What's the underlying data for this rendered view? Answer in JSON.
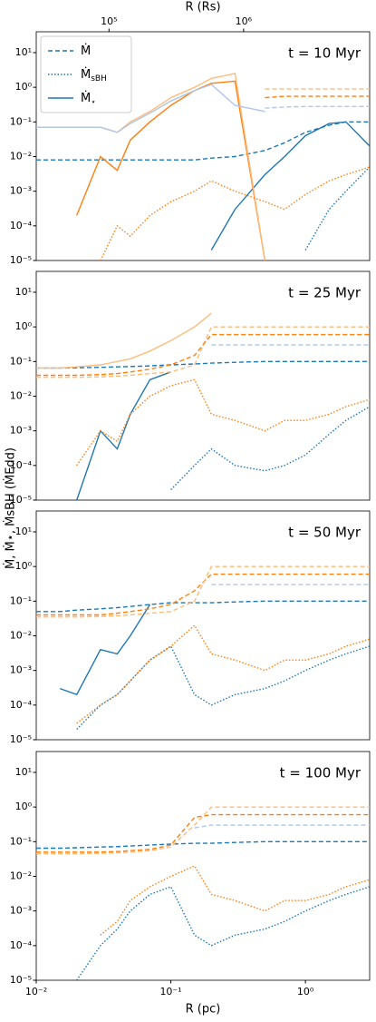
{
  "ylabel": "Ṁ, Ṁ⋆, ṀsBH (ṀEdd)",
  "chart_data": [
    {
      "type": "line",
      "annotation": "t = 10 Myr",
      "x2label": "R (Rs)",
      "x2lim": [
        28800,
        8640000
      ],
      "x2ticks": [
        {
          "value": 100000,
          "label": "10⁵"
        },
        {
          "value": 1000000,
          "label": "10⁶"
        }
      ],
      "legend_loc": "upper left",
      "legend": [
        {
          "label": "Ṁ",
          "linestyle": "dashed",
          "color": "#1f77b4"
        },
        {
          "label": "Ṁ",
          "sub": "sBH",
          "linestyle": "dotted",
          "color": "#1f77b4"
        },
        {
          "label": "Ṁ",
          "sub": "⋆",
          "linestyle": "solid",
          "color": "#1f77b4"
        }
      ],
      "log_x": true,
      "log_y": true,
      "xlim": [
        0.01,
        3
      ],
      "ylim": [
        1e-05,
        40
      ],
      "yticks": [
        {
          "value": 1e-05,
          "label": "10⁻⁵"
        },
        {
          "value": 0.0001,
          "label": "10⁻⁴"
        },
        {
          "value": 0.001,
          "label": "10⁻³"
        },
        {
          "value": 0.01,
          "label": "10⁻²"
        },
        {
          "value": 0.1,
          "label": "10⁻¹"
        },
        {
          "value": 1,
          "label": "10⁰"
        },
        {
          "value": 10,
          "label": "10¹"
        }
      ],
      "x": [
        0.01,
        0.015,
        0.02,
        0.03,
        0.04,
        0.05,
        0.07,
        0.1,
        0.15,
        0.2,
        0.3,
        0.5,
        0.7,
        1,
        1.5,
        2,
        3
      ],
      "series": [
        {
          "color": "#1f77b4",
          "linestyle": "dashed",
          "values": [
            0.008,
            0.008,
            0.008,
            0.008,
            0.008,
            0.008,
            0.008,
            0.008,
            0.008,
            0.009,
            0.01,
            0.015,
            0.025,
            0.05,
            0.08,
            0.1,
            0.1
          ]
        },
        {
          "color": "#1f77b4",
          "linestyle": "solid",
          "values": [
            null,
            null,
            null,
            null,
            null,
            null,
            null,
            null,
            null,
            2e-05,
            0.0003,
            0.003,
            0.01,
            0.04,
            0.09,
            0.1,
            0.02
          ]
        },
        {
          "color": "#1f77b4",
          "linestyle": "dotted",
          "values": [
            null,
            null,
            null,
            null,
            null,
            null,
            null,
            null,
            null,
            null,
            null,
            null,
            null,
            2e-05,
            0.0003,
            0.001,
            0.005
          ]
        },
        {
          "color": "#ff7f0e",
          "linestyle": "solid",
          "values": [
            null,
            null,
            0.0002,
            0.01,
            0.004,
            0.03,
            0.1,
            0.3,
            0.8,
            1.3,
            1.5,
            1e-05,
            null,
            null,
            null,
            null,
            null
          ]
        },
        {
          "color": "#ffbb78",
          "linestyle": "solid",
          "values": [
            0.07,
            0.07,
            0.07,
            0.07,
            0.05,
            0.1,
            0.2,
            0.5,
            1,
            1.8,
            2.5,
            1e-05,
            null,
            null,
            null,
            null,
            null
          ]
        },
        {
          "color": "#aec7e8",
          "linestyle": "solid",
          "values": [
            0.07,
            0.07,
            0.07,
            0.07,
            0.05,
            0.09,
            0.18,
            0.4,
            0.8,
            1.2,
            0.3,
            0.2,
            null,
            null,
            null,
            null,
            null
          ]
        },
        {
          "color": "#ff7f0e",
          "linestyle": "dashed",
          "values": [
            null,
            null,
            null,
            null,
            null,
            null,
            null,
            null,
            null,
            null,
            null,
            0.5,
            0.55,
            0.55,
            0.55,
            0.55,
            0.55
          ]
        },
        {
          "color": "#ffbb78",
          "linestyle": "dashed",
          "values": [
            null,
            null,
            null,
            null,
            null,
            null,
            null,
            null,
            null,
            null,
            null,
            0.9,
            0.9,
            0.9,
            0.9,
            0.9,
            0.9
          ]
        },
        {
          "color": "#aec7e8",
          "linestyle": "dashed",
          "values": [
            null,
            null,
            null,
            null,
            null,
            null,
            null,
            null,
            null,
            null,
            null,
            0.25,
            0.27,
            0.28,
            0.28,
            0.28,
            0.28
          ]
        },
        {
          "color": "#ff7f0e",
          "linestyle": "dotted",
          "values": [
            null,
            null,
            null,
            1e-05,
            0.0001,
            5e-05,
            0.0002,
            0.0005,
            0.001,
            0.002,
            0.001,
            0.0005,
            0.0003,
            0.0008,
            0.002,
            0.003,
            0.005
          ]
        }
      ]
    },
    {
      "type": "line",
      "annotation": "t = 25 Myr",
      "log_x": true,
      "log_y": true,
      "xlim": [
        0.01,
        3
      ],
      "ylim": [
        1e-05,
        40
      ],
      "yticks": [
        {
          "value": 1e-05,
          "label": "10⁻⁵"
        },
        {
          "value": 0.0001,
          "label": "10⁻⁴"
        },
        {
          "value": 0.001,
          "label": "10⁻³"
        },
        {
          "value": 0.01,
          "label": "10⁻²"
        },
        {
          "value": 0.1,
          "label": "10⁻¹"
        },
        {
          "value": 1,
          "label": "10⁰"
        },
        {
          "value": 10,
          "label": "10¹"
        }
      ],
      "x": [
        0.01,
        0.015,
        0.02,
        0.03,
        0.04,
        0.05,
        0.07,
        0.1,
        0.15,
        0.2,
        0.3,
        0.5,
        0.7,
        1,
        1.5,
        2,
        3
      ],
      "series": [
        {
          "color": "#1f77b4",
          "linestyle": "dashed",
          "values": [
            0.065,
            0.065,
            0.066,
            0.068,
            0.07,
            0.072,
            0.075,
            0.08,
            0.085,
            0.09,
            0.095,
            0.1,
            0.1,
            0.1,
            0.1,
            0.1,
            0.1
          ]
        },
        {
          "color": "#1f77b4",
          "linestyle": "solid",
          "values": [
            null,
            null,
            1e-05,
            0.001,
            0.0003,
            0.003,
            0.03,
            0.05,
            null,
            null,
            null,
            null,
            null,
            null,
            null,
            null,
            null
          ]
        },
        {
          "color": "#1f77b4",
          "linestyle": "dotted",
          "values": [
            null,
            null,
            null,
            null,
            null,
            null,
            null,
            2e-05,
            0.0001,
            0.0003,
            0.0001,
            7e-05,
            0.0001,
            0.0002,
            0.0008,
            0.002,
            0.005
          ]
        },
        {
          "color": "#ffbb78",
          "linestyle": "solid",
          "values": [
            0.065,
            0.065,
            0.07,
            0.08,
            0.1,
            0.12,
            0.2,
            0.4,
            1,
            2.5,
            null,
            null,
            null,
            null,
            null,
            null,
            null
          ]
        },
        {
          "color": "#ffbb78",
          "linestyle": "dashed",
          "values": [
            0.035,
            0.035,
            0.035,
            0.036,
            0.038,
            0.04,
            0.045,
            0.05,
            0.08,
            1,
            1,
            1,
            1,
            1,
            1,
            1,
            1
          ]
        },
        {
          "color": "#ff7f0e",
          "linestyle": "dashed",
          "values": [
            0.04,
            0.04,
            0.04,
            0.042,
            0.045,
            0.05,
            0.06,
            0.08,
            0.15,
            0.6,
            0.6,
            0.6,
            0.6,
            0.6,
            0.6,
            0.6,
            0.6
          ]
        },
        {
          "color": "#aec7e8",
          "linestyle": "dashed",
          "values": [
            null,
            null,
            null,
            null,
            null,
            null,
            null,
            null,
            null,
            0.3,
            0.3,
            0.3,
            0.3,
            0.3,
            0.3,
            0.3,
            0.3
          ]
        },
        {
          "color": "#ff7f0e",
          "linestyle": "dotted",
          "values": [
            null,
            null,
            0.0001,
            0.001,
            0.0005,
            0.003,
            0.01,
            0.02,
            0.03,
            0.003,
            0.002,
            0.001,
            0.002,
            0.002,
            0.003,
            0.005,
            0.008
          ]
        }
      ]
    },
    {
      "type": "line",
      "annotation": "t = 50 Myr",
      "log_x": true,
      "log_y": true,
      "xlim": [
        0.01,
        3
      ],
      "ylim": [
        1e-05,
        40
      ],
      "yticks": [
        {
          "value": 1e-05,
          "label": "10⁻⁵"
        },
        {
          "value": 0.0001,
          "label": "10⁻⁴"
        },
        {
          "value": 0.001,
          "label": "10⁻³"
        },
        {
          "value": 0.01,
          "label": "10⁻²"
        },
        {
          "value": 0.1,
          "label": "10⁻¹"
        },
        {
          "value": 1,
          "label": "10⁰"
        },
        {
          "value": 10,
          "label": "10¹"
        }
      ],
      "x": [
        0.01,
        0.015,
        0.02,
        0.03,
        0.04,
        0.05,
        0.07,
        0.1,
        0.15,
        0.2,
        0.3,
        0.5,
        0.7,
        1,
        1.5,
        2,
        3
      ],
      "series": [
        {
          "color": "#1f77b4",
          "linestyle": "dashed",
          "values": [
            0.05,
            0.05,
            0.055,
            0.06,
            0.065,
            0.07,
            0.08,
            0.09,
            0.09,
            0.09,
            0.095,
            0.1,
            0.1,
            0.1,
            0.1,
            0.1,
            0.1
          ]
        },
        {
          "color": "#1f77b4",
          "linestyle": "solid",
          "values": [
            null,
            0.0003,
            0.0002,
            0.004,
            0.003,
            0.01,
            0.08,
            null,
            null,
            null,
            null,
            null,
            null,
            null,
            null,
            null,
            null
          ]
        },
        {
          "color": "#1f77b4",
          "linestyle": "dotted",
          "values": [
            null,
            null,
            2e-05,
            0.0001,
            0.0002,
            0.0005,
            0.002,
            0.005,
            0.0002,
            0.0001,
            0.0002,
            0.0003,
            0.0005,
            0.001,
            0.002,
            0.003,
            0.005
          ]
        },
        {
          "color": "#ff7f0e",
          "linestyle": "dashed",
          "values": [
            0.04,
            0.04,
            0.04,
            0.04,
            0.045,
            0.05,
            0.06,
            0.08,
            0.2,
            0.6,
            0.6,
            0.6,
            0.6,
            0.6,
            0.6,
            0.6,
            0.6
          ]
        },
        {
          "color": "#ffbb78",
          "linestyle": "dashed",
          "values": [
            0.035,
            0.035,
            0.035,
            0.036,
            0.038,
            0.04,
            0.045,
            0.05,
            0.1,
            1,
            1,
            1,
            1,
            1,
            1,
            1,
            1
          ]
        },
        {
          "color": "#aec7e8",
          "linestyle": "dashed",
          "values": [
            null,
            null,
            null,
            null,
            null,
            null,
            null,
            null,
            null,
            0.3,
            0.3,
            0.3,
            0.3,
            0.3,
            0.3,
            0.3,
            0.3
          ]
        },
        {
          "color": "#ff7f0e",
          "linestyle": "dotted",
          "values": [
            null,
            null,
            3e-05,
            0.0001,
            0.0002,
            0.0005,
            0.002,
            0.005,
            0.02,
            0.003,
            0.002,
            0.001,
            0.002,
            0.002,
            0.003,
            0.005,
            0.008
          ]
        }
      ]
    },
    {
      "type": "line",
      "annotation": "t = 100 Myr",
      "xlabel": "R (pc)",
      "xticks": [
        {
          "value": 0.01,
          "label": "10⁻²"
        },
        {
          "value": 0.1,
          "label": "10⁻¹"
        },
        {
          "value": 1,
          "label": "10⁰"
        }
      ],
      "log_x": true,
      "log_y": true,
      "xlim": [
        0.01,
        3
      ],
      "ylim": [
        1e-05,
        40
      ],
      "yticks": [
        {
          "value": 1e-05,
          "label": "10⁻⁵"
        },
        {
          "value": 0.0001,
          "label": "10⁻⁴"
        },
        {
          "value": 0.001,
          "label": "10⁻³"
        },
        {
          "value": 0.01,
          "label": "10⁻²"
        },
        {
          "value": 0.1,
          "label": "10⁻¹"
        },
        {
          "value": 1,
          "label": "10⁰"
        },
        {
          "value": 10,
          "label": "10¹"
        }
      ],
      "x": [
        0.01,
        0.015,
        0.02,
        0.03,
        0.04,
        0.05,
        0.07,
        0.1,
        0.15,
        0.2,
        0.3,
        0.5,
        0.7,
        1,
        1.5,
        2,
        3
      ],
      "series": [
        {
          "color": "#1f77b4",
          "linestyle": "dashed",
          "values": [
            0.065,
            0.065,
            0.067,
            0.07,
            0.072,
            0.075,
            0.08,
            0.085,
            0.09,
            0.09,
            0.095,
            0.1,
            0.1,
            0.1,
            0.1,
            0.1,
            0.1
          ]
        },
        {
          "color": "#ff7f0e",
          "linestyle": "dashed",
          "values": [
            0.05,
            0.05,
            0.05,
            0.05,
            0.052,
            0.055,
            0.06,
            0.08,
            0.5,
            0.6,
            0.6,
            0.6,
            0.6,
            0.6,
            0.6,
            0.6,
            0.6
          ]
        },
        {
          "color": "#ffbb78",
          "linestyle": "dashed",
          "values": [
            0.045,
            0.045,
            0.045,
            0.046,
            0.048,
            0.05,
            0.055,
            0.07,
            0.3,
            1,
            1,
            1,
            1,
            1,
            1,
            1,
            1
          ]
        },
        {
          "color": "#aec7e8",
          "linestyle": "dashed",
          "values": [
            null,
            null,
            null,
            null,
            null,
            null,
            null,
            null,
            0.25,
            0.3,
            0.3,
            0.3,
            0.3,
            0.3,
            0.3,
            0.3,
            0.3
          ]
        },
        {
          "color": "#1f77b4",
          "linestyle": "dotted",
          "values": [
            null,
            null,
            1e-05,
            0.0001,
            0.0003,
            0.001,
            0.003,
            0.005,
            0.0002,
            0.0001,
            0.0002,
            0.0003,
            0.0005,
            0.001,
            0.002,
            0.003,
            0.005
          ]
        },
        {
          "color": "#ff7f0e",
          "linestyle": "dotted",
          "values": [
            null,
            null,
            null,
            0.0002,
            0.0005,
            0.002,
            0.005,
            0.01,
            0.02,
            0.003,
            0.002,
            0.001,
            0.002,
            0.002,
            0.003,
            0.005,
            0.008
          ]
        }
      ]
    }
  ]
}
